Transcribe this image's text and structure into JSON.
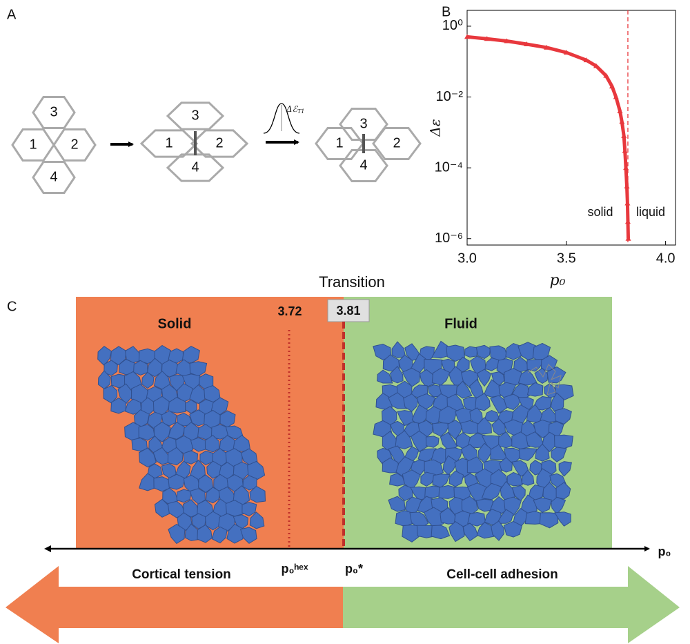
{
  "panels": {
    "a": "A",
    "b": "B",
    "c": "C"
  },
  "panel_a": {
    "diagrams": [
      [
        "3",
        "1",
        "2",
        "4"
      ],
      [
        "3",
        "1",
        "2",
        "4"
      ],
      [
        "3",
        "1",
        "2",
        "4"
      ]
    ],
    "barrier": {
      "symbol": "Δℰ",
      "subscript": "T1"
    }
  },
  "chart_data": {
    "type": "scatter",
    "x_label": "p₀",
    "y_label": "Δε",
    "log_y": true,
    "xlim": [
      3.0,
      4.05
    ],
    "xticks": [
      {
        "value": 3.0,
        "label": "3.0"
      },
      3.5,
      {
        "value": 4.0,
        "label": "4.0"
      }
    ],
    "ylim": [
      6.6e-07,
      2.8
    ],
    "yticks": [
      {
        "value": 1e-06,
        "label": "10⁻⁶"
      },
      {
        "value": 0.0001,
        "label": "10⁻⁴"
      },
      {
        "value": 0.01,
        "label": "10⁻²"
      },
      {
        "value": 1,
        "label": "10⁰"
      }
    ],
    "x": [
      3.0,
      3.1,
      3.2,
      3.3,
      3.4,
      3.5,
      3.6,
      3.65,
      3.7,
      3.73,
      3.75,
      3.77,
      3.78,
      3.79,
      3.795,
      3.8,
      3.805,
      3.808,
      3.81,
      3.812
    ],
    "series": [
      {
        "color": "#e8383d",
        "values": [
          0.5,
          0.44,
          0.38,
          0.31,
          0.25,
          0.18,
          0.11,
          0.075,
          0.04,
          0.02,
          0.01,
          0.004,
          0.002,
          0.0008,
          0.0003,
          0.0001,
          3e-05,
          1e-05,
          3e-06,
          1e-06
        ]
      }
    ],
    "vline": 3.81,
    "annotations": [
      "solid",
      "liquid"
    ]
  },
  "panel_c": {
    "title": "Transition",
    "phases": [
      "Solid",
      "Fluid"
    ],
    "thresholds": [
      "3.72",
      "3.81"
    ],
    "threshold_labels": [
      "p₀ʰᵉˣ",
      "p₀*"
    ],
    "axis_label": "p₀",
    "drivers": [
      "Cortical tension",
      "Cell-cell adhesion"
    ]
  }
}
